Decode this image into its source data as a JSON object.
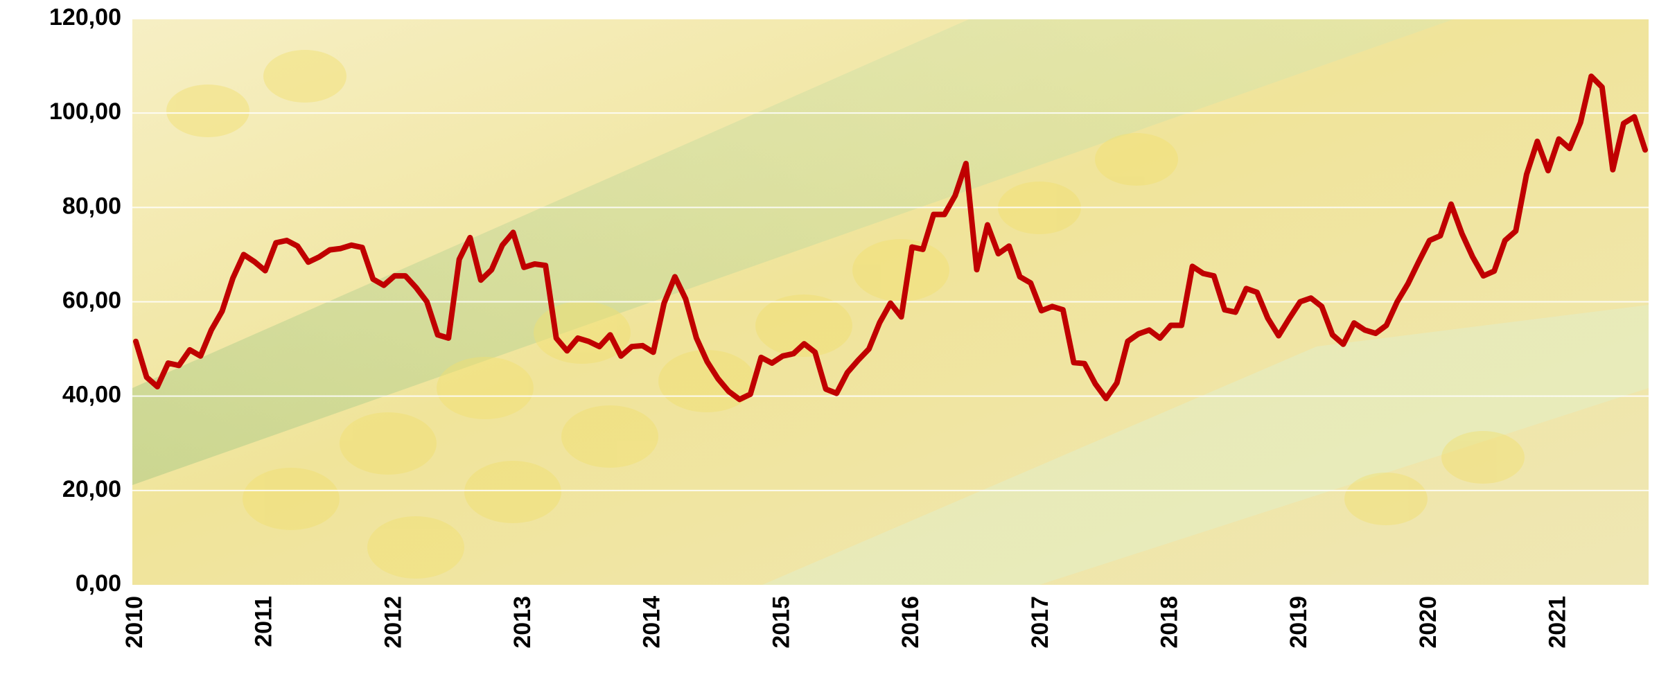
{
  "chart_data": {
    "type": "line",
    "categories": [
      "2010",
      null,
      null,
      null,
      null,
      null,
      null,
      null,
      null,
      null,
      null,
      null,
      "2011",
      null,
      null,
      null,
      null,
      null,
      null,
      null,
      null,
      null,
      null,
      null,
      "2012",
      null,
      null,
      null,
      null,
      null,
      null,
      null,
      null,
      null,
      null,
      null,
      "2013",
      null,
      null,
      null,
      null,
      null,
      null,
      null,
      null,
      null,
      null,
      null,
      "2014",
      null,
      null,
      null,
      null,
      null,
      null,
      null,
      null,
      null,
      null,
      null,
      "2015",
      null,
      null,
      null,
      null,
      null,
      null,
      null,
      null,
      null,
      null,
      null,
      "2016",
      null,
      null,
      null,
      null,
      null,
      null,
      null,
      null,
      null,
      null,
      null,
      "2017",
      null,
      null,
      null,
      null,
      null,
      null,
      null,
      null,
      null,
      null,
      null,
      "2018",
      null,
      null,
      null,
      null,
      null,
      null,
      null,
      null,
      null,
      null,
      null,
      "2019",
      null,
      null,
      null,
      null,
      null,
      null,
      null,
      null,
      null,
      null,
      null,
      "2020",
      null,
      null,
      null,
      null,
      null,
      null,
      null,
      null,
      null,
      null,
      null,
      "2021",
      null,
      null,
      null,
      null,
      null,
      null,
      null,
      null
    ],
    "series": [
      {
        "color": "#c00000",
        "values": [
          51.6,
          44,
          42,
          47,
          46.5,
          49.8,
          48.5,
          54,
          58,
          65,
          70,
          68.5,
          66.6,
          72.5,
          73,
          71.8,
          68.4,
          69.5,
          71,
          71.3,
          72,
          71.5,
          64.8,
          63.5,
          65.5,
          65.5,
          63,
          60,
          53,
          52.3,
          69,
          73.6,
          64.6,
          66.8,
          72,
          74.7,
          67.3,
          68,
          67.7,
          52.3,
          49.6,
          52.3,
          51.6,
          50.5,
          53,
          48.5,
          50.5,
          50.7,
          49.3,
          59.7,
          65.3,
          60.6,
          52.3,
          47.3,
          43.7,
          41,
          39.3,
          40.4,
          48.2,
          47,
          48.5,
          49,
          51.1,
          49.3,
          41.5,
          40.6,
          45,
          47.6,
          50,
          55.6,
          59.7,
          56.8,
          71.6,
          71.1,
          78.5,
          78.5,
          82.5,
          89.3,
          66.8,
          76.3,
          70.2,
          71.8,
          65.3,
          64,
          58.1,
          59,
          58.3,
          47.1,
          46.9,
          42.6,
          39.5,
          42.8,
          51.6,
          53.2,
          54,
          52.3,
          55,
          55,
          67.5,
          66,
          65.5,
          58.3,
          57.8,
          62.8,
          62,
          56.5,
          52.8,
          56.5,
          60,
          60.8,
          59,
          53,
          51,
          55.5,
          54,
          53.3,
          55,
          60,
          63.8,
          68.5,
          73,
          74,
          80.7,
          74.5,
          69.5,
          65.5,
          66.5,
          73,
          75,
          87,
          94,
          87.8,
          94.5,
          92.5,
          98,
          107.8,
          105.5,
          88,
          97.8,
          99.2,
          92.2
        ]
      }
    ],
    "ylim": [
      0,
      120
    ],
    "yticks": [
      {
        "value": 0,
        "label": "0,00"
      },
      {
        "value": 20,
        "label": "20,00"
      },
      {
        "value": 40,
        "label": "40,00"
      },
      {
        "value": 60,
        "label": "60,00"
      },
      {
        "value": 80,
        "label": "80,00"
      },
      {
        "value": 100,
        "label": "100,00"
      },
      {
        "value": 120,
        "label": "120,00"
      }
    ],
    "grid": true
  }
}
